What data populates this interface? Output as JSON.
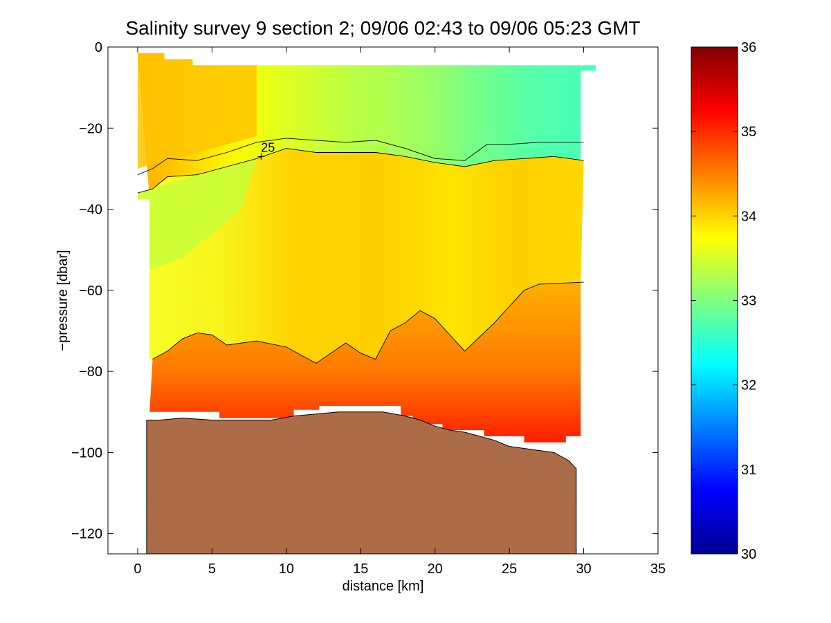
{
  "chart_data": {
    "type": "heatmap",
    "title": "Salinity survey 9 section 2; 09/06 02:43 to 09/06 05:23 GMT",
    "xlabel": "distance [km]",
    "ylabel": "−pressure [dbar]",
    "xlim": [
      -2,
      35
    ],
    "ylim": [
      -125,
      0
    ],
    "xticks": [
      0,
      5,
      10,
      15,
      20,
      25,
      30,
      35
    ],
    "xtick_labels": [
      "0",
      "5",
      "10",
      "15",
      "20",
      "25",
      "30",
      "35"
    ],
    "yticks": [
      0,
      -20,
      -40,
      -60,
      -80,
      -100,
      -120
    ],
    "ytick_labels": [
      "0",
      "−20",
      "−40",
      "−60",
      "−80",
      "−100",
      "−120"
    ],
    "colorbar": {
      "min": 30,
      "max": 36,
      "ticks": [
        30,
        31,
        32,
        33,
        34,
        35,
        36
      ],
      "tick_labels": [
        "30",
        "31",
        "32",
        "33",
        "34",
        "35",
        "36"
      ],
      "colormap": "jet"
    },
    "grid": false,
    "stations_km": [
      0,
      2,
      4,
      6,
      8,
      10,
      12,
      14,
      16,
      18,
      20,
      22,
      24,
      26,
      28,
      30
    ],
    "surface_salinity": [
      34.2,
      34.1,
      33.95,
      33.8,
      33.65,
      33.55,
      33.45,
      33.35,
      33.3,
      33.2,
      33.1,
      32.95,
      32.85,
      32.75,
      32.7,
      32.65
    ],
    "isolines": {
      "upper": {
        "x": [
          0,
          1,
          2,
          4,
          6,
          8,
          10,
          12,
          14,
          16,
          18,
          20,
          22,
          23.5,
          25,
          27,
          30
        ],
        "y": [
          -31.5,
          -30,
          -27.5,
          -28,
          -26,
          -23.5,
          -22.5,
          -23,
          -23.5,
          -23,
          -25,
          -27.5,
          -28,
          -24,
          -24,
          -23.5,
          -23.5
        ]
      },
      "lower": {
        "x": [
          0,
          1,
          2,
          4,
          6,
          8,
          10,
          12,
          14,
          16,
          18,
          20,
          22,
          24,
          26,
          28,
          30
        ],
        "y": [
          -36,
          -35,
          -32,
          -31.5,
          -29.5,
          -27.5,
          -25,
          -26,
          -26,
          -26,
          -27,
          -28.5,
          -29.5,
          -28,
          -27.5,
          -27,
          -28
        ]
      },
      "deep": {
        "x": [
          1,
          2,
          3,
          4,
          5,
          6,
          8,
          10,
          12,
          13,
          14,
          15,
          16,
          17,
          18,
          19,
          20,
          22,
          24,
          25,
          26,
          27,
          30
        ],
        "y": [
          -77,
          -75,
          -72,
          -70.5,
          -71,
          -73.5,
          -72.5,
          -74,
          -78,
          -75.5,
          -73,
          -75.5,
          -77,
          -70,
          -68,
          -65,
          -67,
          -75,
          -68,
          -64,
          -60,
          -58.5,
          -58
        ]
      },
      "contour_label": "25",
      "contour_label_km": 8.3,
      "contour_label_dbar": -27
    },
    "bottom_profile": {
      "x": [
        0.6,
        1.5,
        3,
        5,
        7,
        9,
        10.5,
        12,
        13.5,
        15,
        16.5,
        18,
        19,
        20,
        21,
        22,
        23,
        24,
        25,
        26,
        27,
        28,
        28.5,
        29,
        29.5
      ],
      "y": [
        -92,
        -92,
        -91.5,
        -92,
        -92,
        -92,
        -91,
        -90.5,
        -90,
        -90,
        -90,
        -91,
        -92,
        -93.5,
        -94.5,
        -95,
        -96,
        -97,
        -98.5,
        -99,
        -99.5,
        -100,
        -101,
        -102,
        -104
      ]
    }
  }
}
